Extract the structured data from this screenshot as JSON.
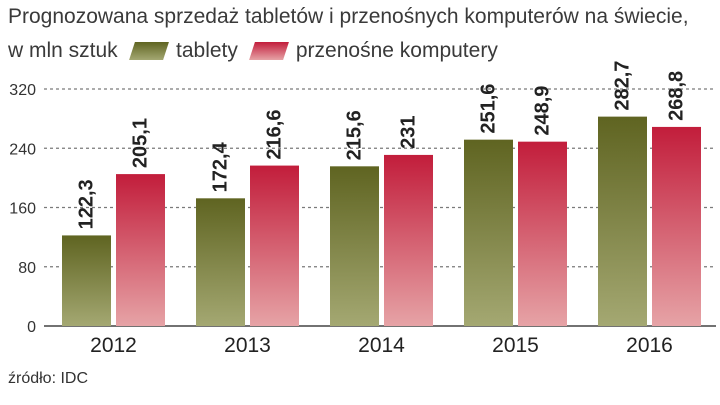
{
  "title": "Prognozowana sprzedaż tabletów i przenośnych komputerów na świecie,",
  "subtitle": "w mln sztuk",
  "source": "źródło: IDC",
  "colors": {
    "tablets_top": "#5f6421",
    "tablets_bottom": "#a4a872",
    "laptops_top": "#c21d3b",
    "laptops_bottom": "#e6a3a6",
    "grid": "#7a7a7a"
  },
  "chart_data": {
    "type": "bar",
    "categories": [
      "2012",
      "2013",
      "2014",
      "2015",
      "2016"
    ],
    "series": [
      {
        "name": "tablety",
        "values": [
          122.3,
          172.4,
          215.6,
          251.6,
          282.7
        ],
        "labels": [
          "122,3",
          "172,4",
          "215,6",
          "251,6",
          "282,7"
        ]
      },
      {
        "name": "przenośne komputery",
        "values": [
          205.1,
          216.6,
          231,
          248.9,
          268.8
        ],
        "labels": [
          "205,1",
          "216,6",
          "231",
          "248,9",
          "268,8"
        ]
      }
    ],
    "yticks": [
      "0",
      "80",
      "160",
      "240",
      "320"
    ],
    "ylim": [
      0,
      320
    ],
    "grid": true,
    "legend": "top"
  }
}
